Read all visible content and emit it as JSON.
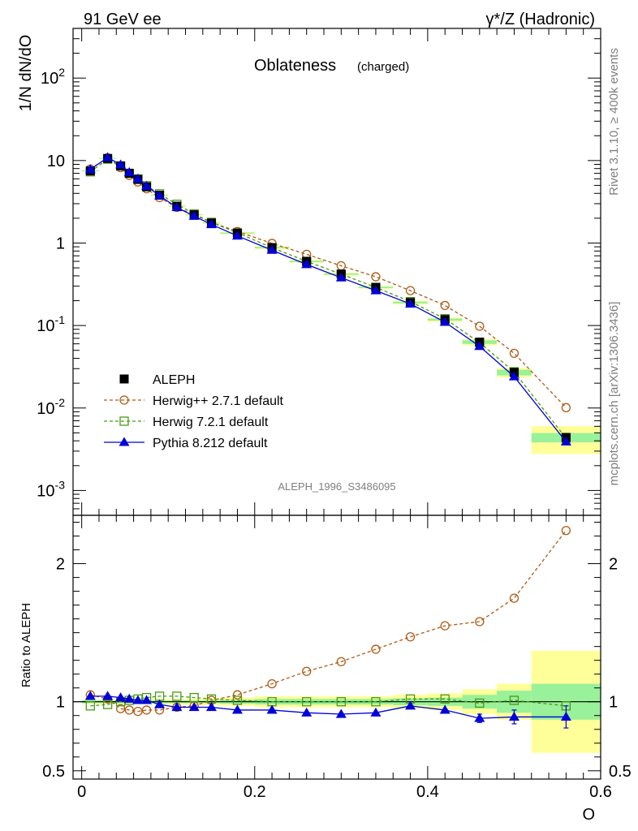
{
  "header": {
    "left": "91 GeV ee",
    "right": "γ*/Z (Hadronic)"
  },
  "side_labels": {
    "rivet": "Rivet 3.1.10, ≥ 400k events",
    "mcplots": "mcplots.cern.ch [arXiv:1306.3436]"
  },
  "chart_data": {
    "type": "line",
    "title": "Oblateness",
    "subtitle": "(charged)",
    "analysis_id": "ALEPH_1996_S3486095",
    "xlabel": "O",
    "ylabel": "1/N dN/dO",
    "ratio_ylabel": "Ratio to ALEPH",
    "xlim": [
      -0.01,
      0.6
    ],
    "ylim": [
      0.0005,
      400
    ],
    "yscale": "log",
    "ratio_ylim": [
      0.44,
      2.35
    ],
    "xticks": [
      0,
      0.2,
      0.4,
      0.6
    ],
    "xtick_labels": [
      "0",
      "0.2",
      "0.4",
      "0.6"
    ],
    "ytick_labels": [
      "10^-3",
      "10^-2",
      "10^-1",
      "1",
      "10",
      "10^2"
    ],
    "ratio_yticks": [
      0.5,
      1,
      2
    ],
    "ratio_ytick_labels": [
      "0.5",
      "1",
      "2"
    ],
    "x": [
      0.01,
      0.03,
      0.045,
      0.055,
      0.065,
      0.075,
      0.09,
      0.11,
      0.13,
      0.15,
      0.18,
      0.22,
      0.26,
      0.3,
      0.34,
      0.38,
      0.42,
      0.46,
      0.5,
      0.56
    ],
    "x_edges": [
      0,
      0.02,
      0.04,
      0.05,
      0.06,
      0.07,
      0.08,
      0.1,
      0.12,
      0.14,
      0.16,
      0.2,
      0.24,
      0.28,
      0.32,
      0.36,
      0.4,
      0.44,
      0.48,
      0.52,
      0.6
    ],
    "uncertainty_band": {
      "stat_rel": [
        0.01,
        0.01,
        0.01,
        0.01,
        0.01,
        0.01,
        0.01,
        0.01,
        0.01,
        0.01,
        0.015,
        0.02,
        0.02,
        0.02,
        0.02,
        0.025,
        0.03,
        0.05,
        0.08,
        0.13
      ],
      "total_rel": [
        0.015,
        0.015,
        0.015,
        0.015,
        0.015,
        0.015,
        0.02,
        0.02,
        0.02,
        0.025,
        0.03,
        0.04,
        0.04,
        0.04,
        0.04,
        0.05,
        0.06,
        0.09,
        0.13,
        0.37
      ]
    },
    "series": [
      {
        "name": "ALEPH",
        "color": "#000000",
        "marker": "filled-square",
        "values": [
          7.5,
          10.6,
          8.6,
          7.0,
          5.9,
          4.8,
          3.8,
          2.8,
          2.2,
          1.75,
          1.32,
          0.88,
          0.6,
          0.42,
          0.29,
          0.19,
          0.118,
          0.063,
          0.027,
          0.0044
        ],
        "ratio": [
          1,
          1,
          1,
          1,
          1,
          1,
          1,
          1,
          1,
          1,
          1,
          1,
          1,
          1,
          1,
          1,
          1,
          1,
          1,
          1
        ]
      },
      {
        "name": "Herwig++ 2.7.1 default",
        "color": "#b05a14",
        "marker": "open-circle",
        "line": "dashed",
        "values": [
          7.9,
          10.8,
          8.2,
          6.6,
          5.5,
          4.55,
          3.55,
          2.7,
          2.2,
          1.78,
          1.38,
          0.99,
          0.73,
          0.53,
          0.39,
          0.265,
          0.175,
          0.098,
          0.046,
          0.0101
        ],
        "ratio": [
          1.05,
          1.02,
          0.95,
          0.94,
          0.93,
          0.94,
          0.94,
          0.96,
          0.97,
          1.01,
          1.05,
          1.13,
          1.22,
          1.29,
          1.38,
          1.47,
          1.55,
          1.58,
          1.75,
          2.24
        ]
      },
      {
        "name": "Herwig 7.2.1 default",
        "color": "#4a9a14",
        "marker": "open-square",
        "line": "dashed",
        "values": [
          7.3,
          10.4,
          8.6,
          7.0,
          6.0,
          4.95,
          3.95,
          2.95,
          2.25,
          1.78,
          1.33,
          0.88,
          0.6,
          0.42,
          0.29,
          0.195,
          0.121,
          0.062,
          0.0275,
          0.0043
        ],
        "ratio": [
          0.97,
          0.98,
          1.0,
          1.01,
          1.02,
          1.03,
          1.04,
          1.04,
          1.03,
          1.02,
          1.01,
          1.0,
          1.0,
          1.0,
          1.0,
          1.02,
          1.02,
          0.99,
          1.01,
          0.97
        ]
      },
      {
        "name": "Pythia 8.212 default",
        "color": "#0000d8",
        "marker": "filled-triangle",
        "line": "solid",
        "values": [
          7.8,
          10.9,
          8.9,
          7.2,
          6.0,
          4.9,
          3.75,
          2.7,
          2.12,
          1.68,
          1.22,
          0.82,
          0.55,
          0.38,
          0.265,
          0.183,
          0.11,
          0.056,
          0.024,
          0.0039
        ],
        "ratio": [
          1.04,
          1.04,
          1.03,
          1.02,
          1.01,
          1.01,
          0.98,
          0.96,
          0.96,
          0.96,
          0.94,
          0.94,
          0.92,
          0.91,
          0.92,
          0.97,
          0.94,
          0.88,
          0.89,
          0.89
        ],
        "ratio_err": [
          0,
          0,
          0,
          0,
          0,
          0,
          0,
          0,
          0,
          0,
          0,
          0,
          0,
          0,
          0,
          0,
          0,
          0.03,
          0.05,
          0.08
        ]
      }
    ]
  }
}
